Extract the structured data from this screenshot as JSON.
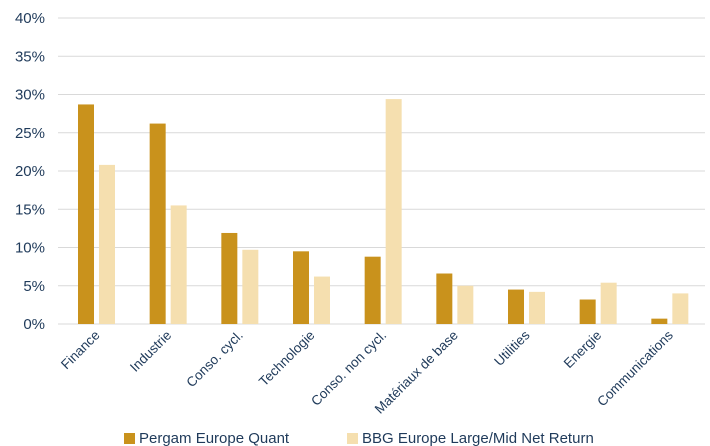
{
  "chart_data": {
    "type": "bar",
    "categories": [
      "Finance",
      "Industrie",
      "Conso. cycl.",
      "Technologie",
      "Conso. non cycl.",
      "Matériaux de base",
      "Utilities",
      "Energie",
      "Communications"
    ],
    "series": [
      {
        "name": "Pergam Europe Quant",
        "color": "#c9921c",
        "values": [
          28.7,
          26.2,
          11.9,
          9.5,
          8.8,
          6.6,
          4.5,
          3.2,
          0.7
        ]
      },
      {
        "name": "BBG Europe Large/Mid Net Return",
        "color": "#f5dfaf",
        "values": [
          20.8,
          15.5,
          9.7,
          6.2,
          29.4,
          5.0,
          4.2,
          5.4,
          4.0
        ]
      }
    ],
    "yticks": [
      "0%",
      "5%",
      "10%",
      "15%",
      "20%",
      "25%",
      "30%",
      "35%",
      "40%"
    ],
    "ylim": [
      0,
      40
    ],
    "grid": true,
    "legend_position": "bottom"
  }
}
